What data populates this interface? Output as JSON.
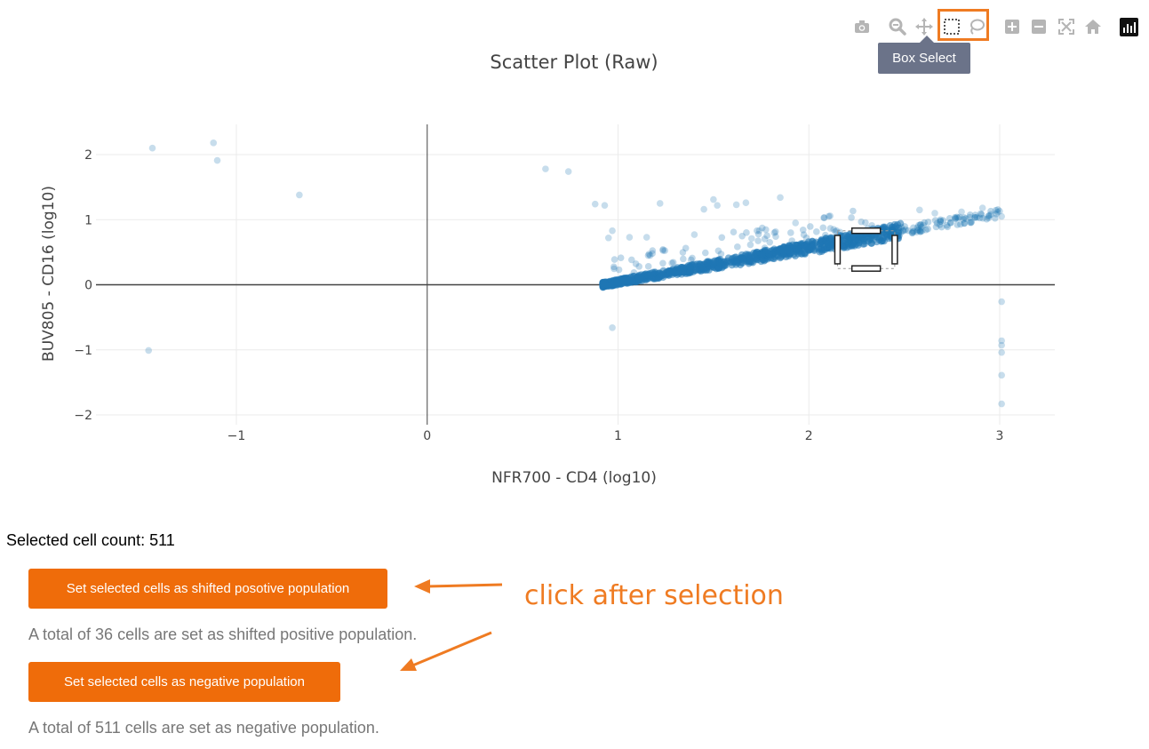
{
  "plot": {
    "title": "Scatter Plot (Raw)",
    "x_axis_label": "NFR700 - CD4 (log10)",
    "y_axis_label": "BUV805 - CD16 (log10)",
    "modebar_tooltip": "Box Select",
    "modebar_icons": [
      "camera-icon",
      "zoom-icon",
      "pan-icon",
      "box-select-icon",
      "lasso-select-icon",
      "zoom-in-icon",
      "zoom-out-icon",
      "autoscale-icon",
      "reset-axes-icon",
      "plotly-logo"
    ]
  },
  "chart_data": {
    "type": "scatter",
    "title": "Scatter Plot (Raw)",
    "xlabel": "NFR700 - CD4 (log10)",
    "ylabel": "BUV805 - CD16 (log10)",
    "xlim": [
      -1.7,
      3.28
    ],
    "ylim": [
      -2.1,
      2.45
    ],
    "xticks": [
      -1,
      0,
      1,
      2,
      3
    ],
    "yticks": [
      -2,
      -1,
      0,
      1,
      2
    ],
    "xtick_labels": [
      "−1",
      "0",
      "1",
      "2",
      "3"
    ],
    "ytick_labels": [
      "−2",
      "−1",
      "0",
      "1",
      "2"
    ],
    "grid": true,
    "point_color": "#1f77b4",
    "outliers": {
      "x": [
        -1.44,
        -1.12,
        -1.1,
        -0.67,
        -1.46,
        0.62,
        0.74,
        0.88,
        0.93,
        0.97,
        0.97,
        1.06,
        1.15,
        1.22,
        1.45,
        1.5,
        1.52,
        1.62,
        1.67,
        1.74,
        1.85,
        1.93,
        2.13,
        2.58,
        2.66,
        2.8,
        2.91,
        3.0,
        3.01,
        3.01,
        3.01,
        3.01,
        3.01,
        3.01,
        3.01,
        0.95,
        1.4,
        1.7
      ],
      "y": [
        2.1,
        2.18,
        1.91,
        1.38,
        -1.01,
        1.78,
        1.74,
        1.24,
        1.22,
        0.83,
        -0.66,
        0.73,
        0.73,
        1.25,
        1.16,
        1.31,
        1.22,
        1.23,
        1.26,
        0.83,
        1.34,
        0.95,
        0.85,
        1.15,
        1.1,
        1.12,
        1.18,
        1.13,
        1.05,
        -0.26,
        -0.86,
        -0.93,
        -1.04,
        -1.39,
        -1.83,
        0.72,
        0.77,
        0.71
      ]
    },
    "main_population": {
      "description_points": "dense cluster along y ≈ 0.29·(x − 0.92), x from 0.92 to 3.0",
      "x_range": [
        0.92,
        3.0
      ],
      "y_at_x_start": 0.0,
      "y_at_x_end": 1.1
    },
    "selection_box": {
      "x_range": [
        2.15,
        2.45
      ],
      "y_range": [
        0.25,
        0.83
      ]
    }
  },
  "selection": {
    "count_label": "Selected cell count: 511"
  },
  "buttons": {
    "shifted_label": "Set selected cells as shifted posotive population",
    "negative_label": "Set selected cells as negative population"
  },
  "notes": {
    "shifted": "A total of 36 cells are set as shifted positive population.",
    "negative": "A total of 511 cells are set as negative population."
  },
  "annotation": {
    "text": "click after selection",
    "color": "#ef7b22"
  },
  "colors": {
    "accent": "#ef6c0a",
    "tooltip_bg": "#6b7389",
    "marker": "#1f77b4"
  }
}
